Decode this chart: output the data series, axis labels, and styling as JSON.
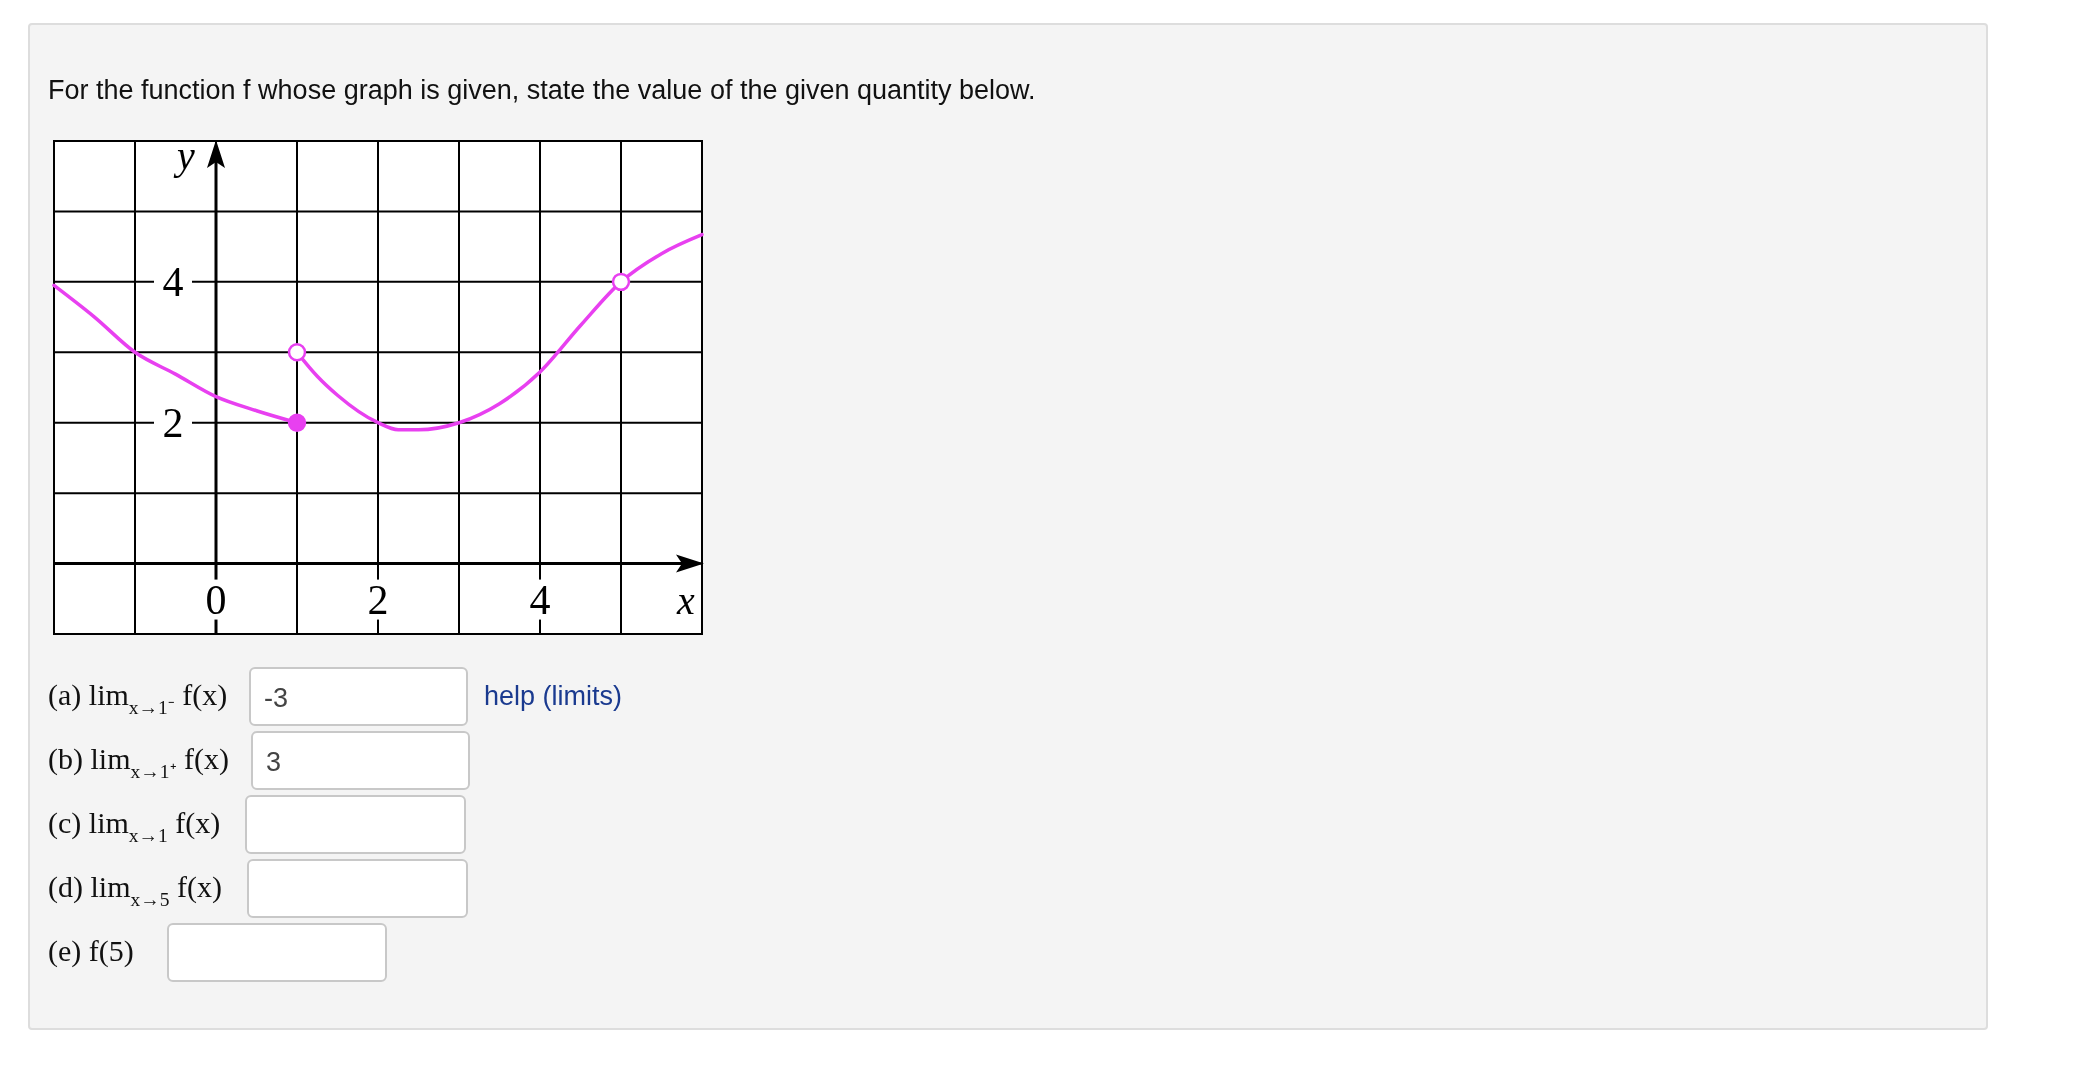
{
  "chart_data": {
    "type": "line",
    "title": "For the function f whose graph is given, state the value of the given quantity below.",
    "xlabel": "x",
    "ylabel": "y",
    "xlim": [
      -2,
      6
    ],
    "ylim": [
      -1,
      6
    ],
    "xticks": [
      0,
      2,
      4
    ],
    "yticks": [
      2,
      4
    ],
    "grid": true,
    "marker": "none",
    "line_style": "solid",
    "series": [
      {
        "color": "#e840f0",
        "x": [
          -2,
          -1.5,
          -1,
          -0.5,
          0,
          0.5,
          1
        ],
        "values": [
          3.95,
          3.5,
          3.0,
          2.69,
          2.37,
          2.17,
          2
        ]
      },
      {
        "color": "#e840f0",
        "x": [
          1,
          1.25,
          1.5,
          2,
          2.25,
          2.5,
          3,
          3.5,
          4,
          4.5,
          5,
          5.5,
          6
        ],
        "values": [
          3,
          2.66,
          2.39,
          2.0,
          1.9,
          1.9,
          2.0,
          2.27,
          2.72,
          3.38,
          4.0,
          4.4,
          4.67
        ]
      },
      {
        "type": "scatter",
        "marker": "circle",
        "color": "#e840f0",
        "x": [
          1
        ],
        "values": [
          2
        ]
      },
      {
        "type": "scatter",
        "marker": "circle",
        "color": "#ffffff",
        "x": [
          1,
          5
        ],
        "values": [
          3,
          4
        ]
      }
    ],
    "annotations": [
      "(a) lim$_{x→1⁻}$ f(x)",
      "(b) lim$_{x→1⁺}$ f(x)",
      "(c) lim$_{x→1}$ f(x)",
      "(d) lim$_{x→5}$ f(x)",
      "(e) f(5)",
      "-3",
      "3",
      "help (limits)"
    ]
  }
}
